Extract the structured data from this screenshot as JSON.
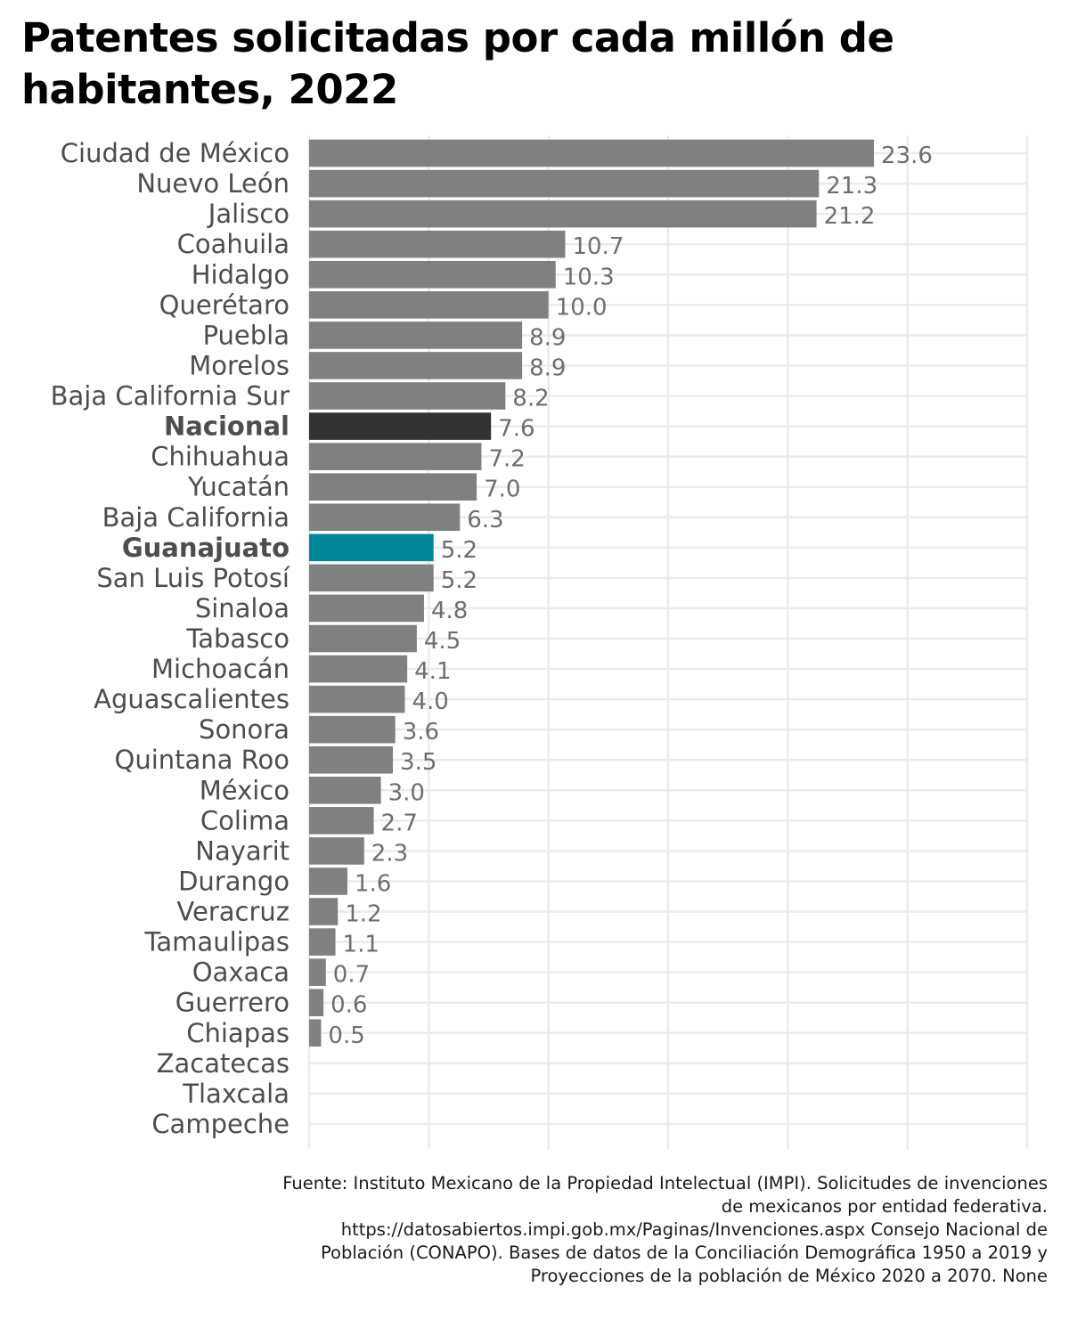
{
  "chart_data": {
    "type": "bar",
    "orientation": "horizontal",
    "title": "Patentes solicitadas por cada millón de habitantes, 2022",
    "xlabel": "",
    "ylabel": "",
    "xlim": [
      0,
      30
    ],
    "grid": true,
    "legend": "none",
    "categories": [
      "Ciudad de México",
      "Nuevo León",
      "Jalisco",
      "Coahuila",
      "Hidalgo",
      "Querétaro",
      "Puebla",
      "Morelos",
      "Baja California Sur",
      "Nacional",
      "Chihuahua",
      "Yucatán",
      "Baja California",
      "Guanajuato",
      "San Luis Potosí",
      "Sinaloa",
      "Tabasco",
      "Michoacán",
      "Aguascalientes",
      "Sonora",
      "Quintana Roo",
      "México",
      "Colima",
      "Nayarit",
      "Durango",
      "Veracruz",
      "Tamaulipas",
      "Oaxaca",
      "Guerrero",
      "Chiapas",
      "Zacatecas",
      "Tlaxcala",
      "Campeche"
    ],
    "values": [
      23.6,
      21.3,
      21.2,
      10.7,
      10.3,
      10.0,
      8.9,
      8.9,
      8.2,
      7.6,
      7.2,
      7.0,
      6.3,
      5.2,
      5.2,
      4.8,
      4.5,
      4.1,
      4.0,
      3.6,
      3.5,
      3.0,
      2.7,
      2.3,
      1.6,
      1.2,
      1.1,
      0.7,
      0.6,
      0.5,
      null,
      null,
      null
    ],
    "value_labels": [
      "23.6",
      "21.3",
      "21.2",
      "10.7",
      "10.3",
      "10.0",
      "8.9",
      "8.9",
      "8.2",
      "7.6",
      "7.2",
      "7.0",
      "6.3",
      "5.2",
      "5.2",
      "4.8",
      "4.5",
      "4.1",
      "4.0",
      "3.6",
      "3.5",
      "3.0",
      "2.7",
      "2.3",
      "1.6",
      "1.2",
      "1.1",
      "0.7",
      "0.6",
      "0.5",
      "",
      "",
      ""
    ],
    "highlight": {
      "Nacional": "national",
      "Guanajuato": "focus"
    },
    "colors": {
      "default_bar": "#808080",
      "national_bar": "#333333",
      "focus_bar": "#00879a",
      "default_text": "#4d4d4d",
      "default_value_text": "#6e6e6e",
      "national_text": "#000000",
      "national_value_text": "#1a1a1a",
      "focus_text": "#00879a",
      "grid": "#ebebeb"
    }
  },
  "source_note": "Fuente: Instituto Mexicano de la Propiedad Intelectual (IMPI). Solicitudes de invenciones de mexicanos por entidad federativa. https://datosabiertos.impi.gob.mx/Paginas/Invenciones.aspx Consejo Nacional de Población (CONAPO). Bases de datos de la Conciliación Demográfica 1950 a 2019 y Proyecciones de la población de México 2020 a 2070. None"
}
